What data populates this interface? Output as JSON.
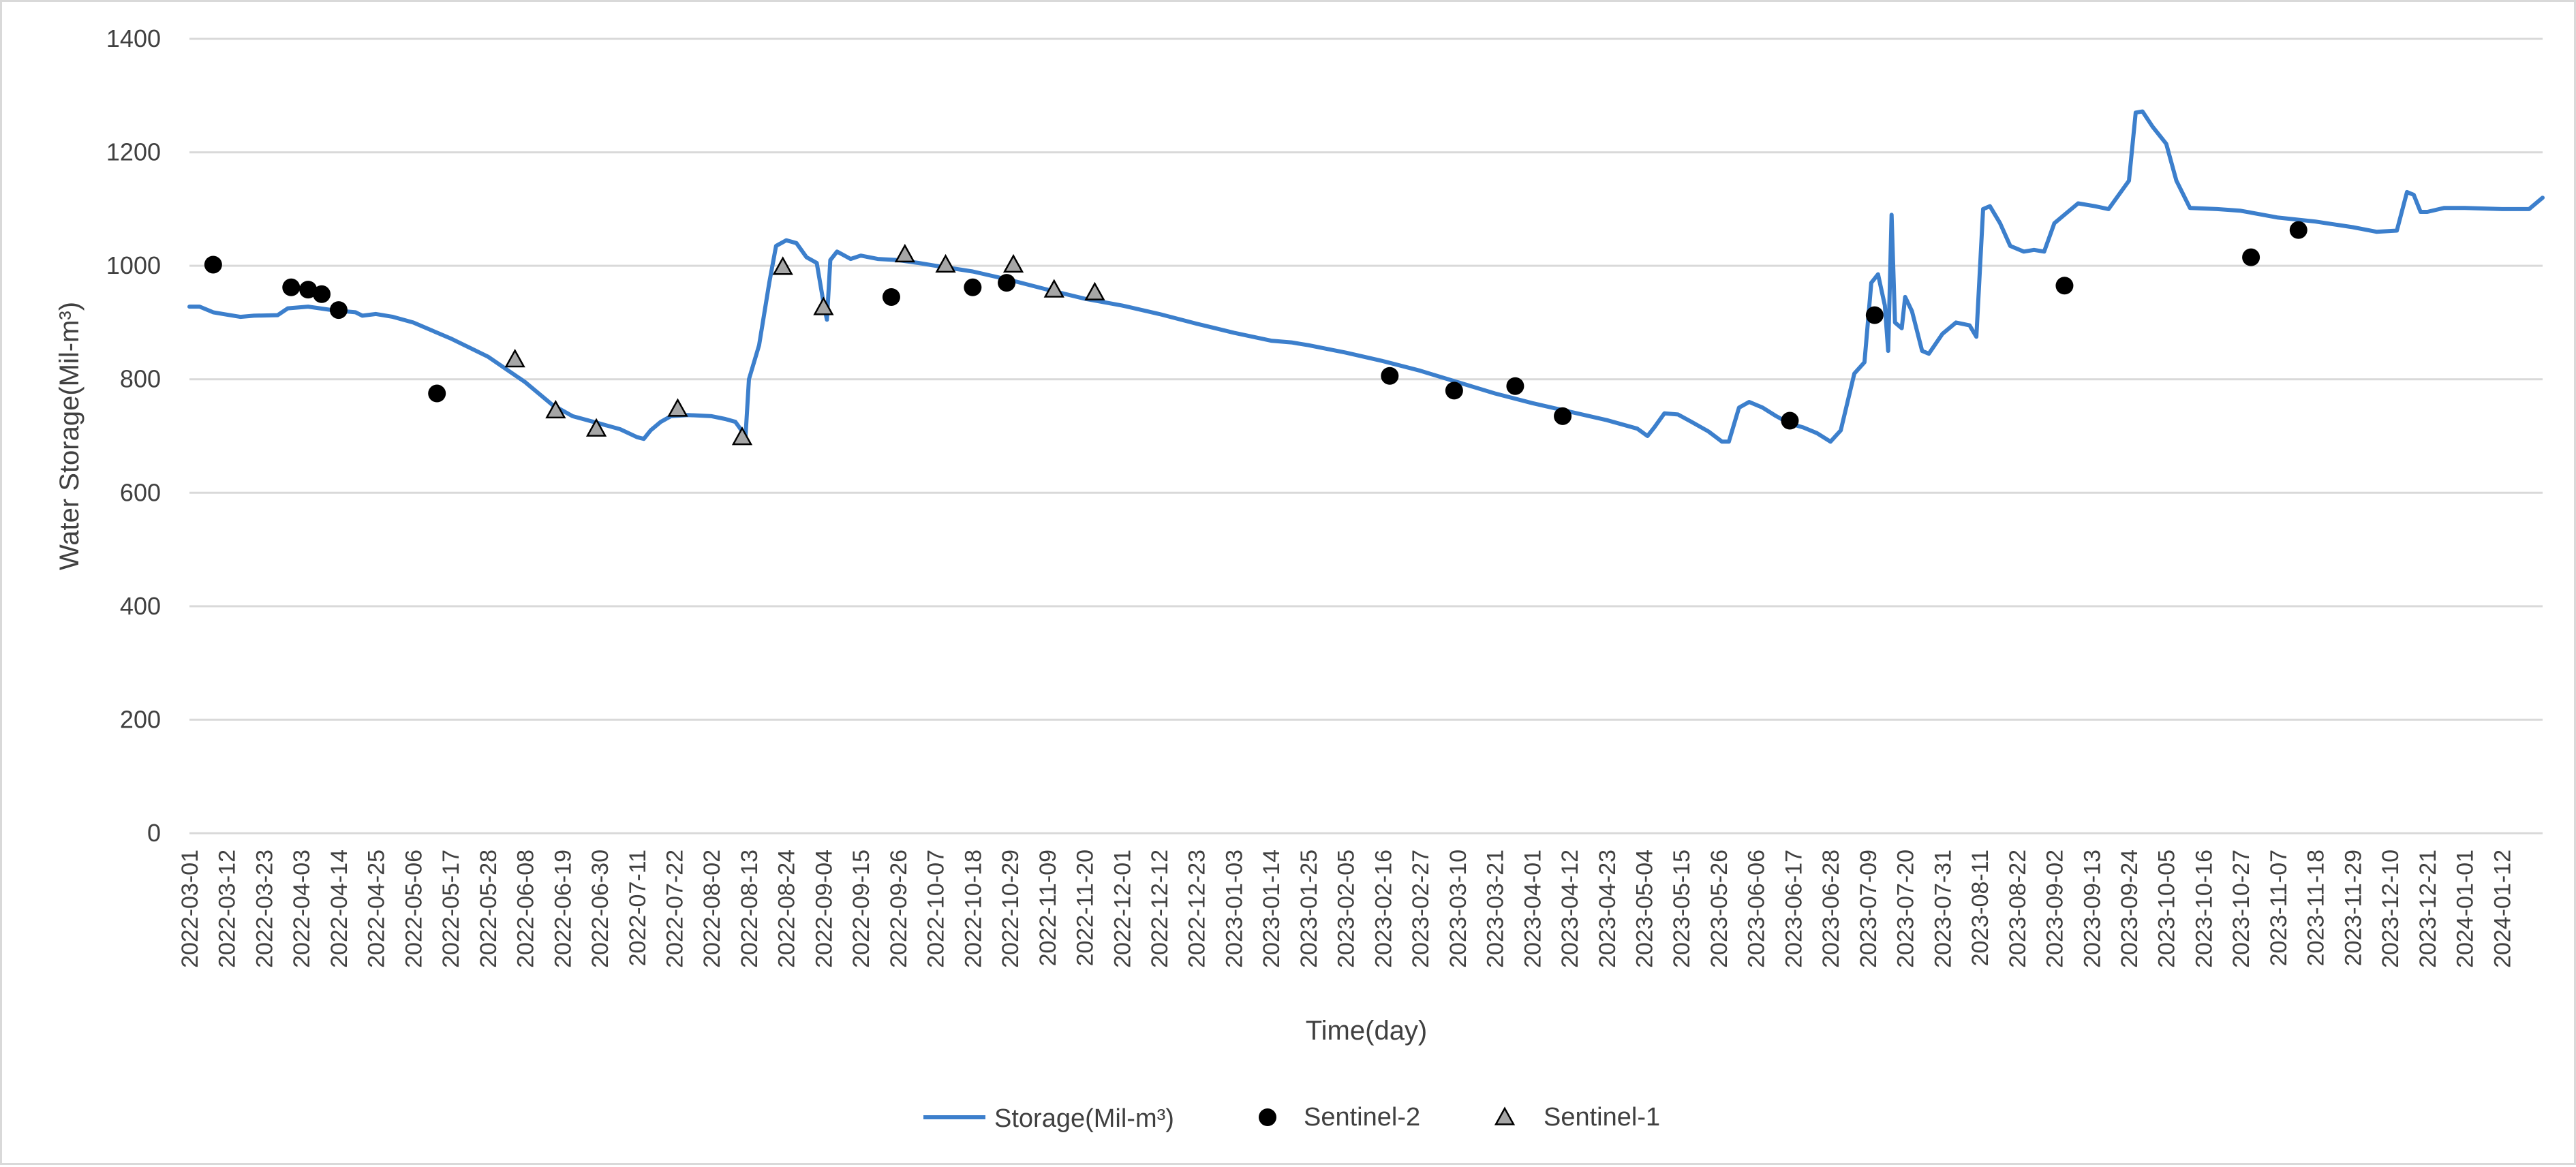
{
  "chart_data": {
    "type": "line",
    "title": "",
    "xlabel": "Time(day)",
    "ylabel": "Water Storage(Mil-m³)",
    "ylim": [
      0,
      1400
    ],
    "yticks": [
      0,
      200,
      400,
      600,
      800,
      1000,
      1200,
      1400
    ],
    "xlim": [
      "2022-03-01",
      "2024-01-24"
    ],
    "grid": "horizontal",
    "legend_position": "bottom",
    "x_tick_labels": [
      "2022-03-01",
      "2022-03-12",
      "2022-03-23",
      "2022-04-03",
      "2022-04-14",
      "2022-04-25",
      "2022-05-06",
      "2022-05-17",
      "2022-05-28",
      "2022-06-08",
      "2022-06-19",
      "2022-06-30",
      "2022-07-11",
      "2022-07-22",
      "2022-08-02",
      "2022-08-13",
      "2022-08-24",
      "2022-09-04",
      "2022-09-15",
      "2022-09-26",
      "2022-10-07",
      "2022-10-18",
      "2022-10-29",
      "2022-11-09",
      "2022-11-20",
      "2022-12-01",
      "2022-12-12",
      "2022-12-23",
      "2023-01-03",
      "2023-01-14",
      "2023-01-25",
      "2023-02-05",
      "2023-02-16",
      "2023-02-27",
      "2023-03-10",
      "2023-03-21",
      "2023-04-01",
      "2023-04-12",
      "2023-04-23",
      "2023-05-04",
      "2023-05-15",
      "2023-05-26",
      "2023-06-06",
      "2023-06-17",
      "2023-06-28",
      "2023-07-09",
      "2023-07-20",
      "2023-07-31",
      "2023-08-11",
      "2023-08-22",
      "2023-09-02",
      "2023-09-13",
      "2023-09-24",
      "2023-10-05",
      "2023-10-16",
      "2023-10-27",
      "2023-11-07",
      "2023-11-18",
      "2023-11-29",
      "2023-12-10",
      "2023-12-21",
      "2024-01-01",
      "2024-01-12"
    ],
    "series": [
      {
        "name": "Storage(Mil-m³)",
        "kind": "line",
        "color": "#3c7fcc",
        "points": [
          [
            "2022-03-01",
            928
          ],
          [
            "2022-03-04",
            928
          ],
          [
            "2022-03-08",
            918
          ],
          [
            "2022-03-12",
            914
          ],
          [
            "2022-03-16",
            910
          ],
          [
            "2022-03-20",
            912
          ],
          [
            "2022-03-27",
            913
          ],
          [
            "2022-03-30",
            925
          ],
          [
            "2022-04-05",
            928
          ],
          [
            "2022-04-12",
            922
          ],
          [
            "2022-04-19",
            918
          ],
          [
            "2022-04-21",
            912
          ],
          [
            "2022-04-25",
            915
          ],
          [
            "2022-04-30",
            910
          ],
          [
            "2022-05-06",
            900
          ],
          [
            "2022-05-17",
            872
          ],
          [
            "2022-05-28",
            840
          ],
          [
            "2022-06-08",
            795
          ],
          [
            "2022-06-16",
            755
          ],
          [
            "2022-06-22",
            735
          ],
          [
            "2022-06-30",
            722
          ],
          [
            "2022-07-06",
            712
          ],
          [
            "2022-07-11",
            698
          ],
          [
            "2022-07-13",
            695
          ],
          [
            "2022-07-15",
            710
          ],
          [
            "2022-07-18",
            725
          ],
          [
            "2022-07-21",
            735
          ],
          [
            "2022-07-26",
            737
          ],
          [
            "2022-08-02",
            735
          ],
          [
            "2022-08-06",
            730
          ],
          [
            "2022-08-09",
            725
          ],
          [
            "2022-08-12",
            700
          ],
          [
            "2022-08-13",
            800
          ],
          [
            "2022-08-16",
            860
          ],
          [
            "2022-08-19",
            970
          ],
          [
            "2022-08-21",
            1035
          ],
          [
            "2022-08-24",
            1045
          ],
          [
            "2022-08-27",
            1040
          ],
          [
            "2022-08-30",
            1015
          ],
          [
            "2022-09-02",
            1005
          ],
          [
            "2022-09-04",
            935
          ],
          [
            "2022-09-05",
            905
          ],
          [
            "2022-09-06",
            1010
          ],
          [
            "2022-09-08",
            1025
          ],
          [
            "2022-09-12",
            1012
          ],
          [
            "2022-09-15",
            1018
          ],
          [
            "2022-09-20",
            1012
          ],
          [
            "2022-09-26",
            1010
          ],
          [
            "2022-10-02",
            1005
          ],
          [
            "2022-10-07",
            1000
          ],
          [
            "2022-10-18",
            990
          ],
          [
            "2022-10-29",
            975
          ],
          [
            "2022-11-09",
            958
          ],
          [
            "2022-11-20",
            942
          ],
          [
            "2022-12-01",
            930
          ],
          [
            "2022-12-12",
            915
          ],
          [
            "2022-12-23",
            898
          ],
          [
            "2023-01-03",
            882
          ],
          [
            "2023-01-14",
            868
          ],
          [
            "2023-01-20",
            865
          ],
          [
            "2023-01-25",
            860
          ],
          [
            "2023-02-05",
            847
          ],
          [
            "2023-02-16",
            832
          ],
          [
            "2023-02-27",
            815
          ],
          [
            "2023-03-10",
            795
          ],
          [
            "2023-03-21",
            775
          ],
          [
            "2023-04-01",
            758
          ],
          [
            "2023-04-12",
            743
          ],
          [
            "2023-04-23",
            728
          ],
          [
            "2023-05-02",
            713
          ],
          [
            "2023-05-05",
            700
          ],
          [
            "2023-05-07",
            715
          ],
          [
            "2023-05-10",
            740
          ],
          [
            "2023-05-14",
            738
          ],
          [
            "2023-05-18",
            725
          ],
          [
            "2023-05-23",
            708
          ],
          [
            "2023-05-27",
            690
          ],
          [
            "2023-05-29",
            690
          ],
          [
            "2023-06-01",
            750
          ],
          [
            "2023-06-04",
            760
          ],
          [
            "2023-06-08",
            750
          ],
          [
            "2023-06-12",
            735
          ],
          [
            "2023-06-16",
            722
          ],
          [
            "2023-06-20",
            715
          ],
          [
            "2023-06-24",
            705
          ],
          [
            "2023-06-28",
            690
          ],
          [
            "2023-07-01",
            710
          ],
          [
            "2023-07-05",
            810
          ],
          [
            "2023-07-08",
            830
          ],
          [
            "2023-07-10",
            970
          ],
          [
            "2023-07-12",
            985
          ],
          [
            "2023-07-14",
            930
          ],
          [
            "2023-07-15",
            850
          ],
          [
            "2023-07-16",
            1090
          ],
          [
            "2023-07-17",
            900
          ],
          [
            "2023-07-19",
            890
          ],
          [
            "2023-07-20",
            945
          ],
          [
            "2023-07-22",
            920
          ],
          [
            "2023-07-25",
            850
          ],
          [
            "2023-07-27",
            845
          ],
          [
            "2023-07-31",
            880
          ],
          [
            "2023-08-04",
            900
          ],
          [
            "2023-08-08",
            895
          ],
          [
            "2023-08-10",
            875
          ],
          [
            "2023-08-12",
            1100
          ],
          [
            "2023-08-14",
            1105
          ],
          [
            "2023-08-17",
            1075
          ],
          [
            "2023-08-20",
            1035
          ],
          [
            "2023-08-24",
            1025
          ],
          [
            "2023-08-27",
            1028
          ],
          [
            "2023-08-30",
            1025
          ],
          [
            "2023-09-02",
            1075
          ],
          [
            "2023-09-06",
            1095
          ],
          [
            "2023-09-09",
            1110
          ],
          [
            "2023-09-14",
            1105
          ],
          [
            "2023-09-18",
            1100
          ],
          [
            "2023-09-21",
            1125
          ],
          [
            "2023-09-24",
            1150
          ],
          [
            "2023-09-26",
            1270
          ],
          [
            "2023-09-28",
            1272
          ],
          [
            "2023-10-01",
            1245
          ],
          [
            "2023-10-05",
            1215
          ],
          [
            "2023-10-08",
            1150
          ],
          [
            "2023-10-12",
            1102
          ],
          [
            "2023-10-20",
            1100
          ],
          [
            "2023-10-27",
            1097
          ],
          [
            "2023-11-07",
            1085
          ],
          [
            "2023-11-18",
            1078
          ],
          [
            "2023-11-29",
            1068
          ],
          [
            "2023-12-06",
            1060
          ],
          [
            "2023-12-12",
            1062
          ],
          [
            "2023-12-15",
            1130
          ],
          [
            "2023-12-17",
            1125
          ],
          [
            "2023-12-19",
            1095
          ],
          [
            "2023-12-21",
            1095
          ],
          [
            "2023-12-26",
            1102
          ],
          [
            "2024-01-01",
            1102
          ],
          [
            "2024-01-12",
            1100
          ],
          [
            "2024-01-20",
            1100
          ],
          [
            "2024-01-24",
            1120
          ]
        ]
      },
      {
        "name": "Sentinel-2",
        "kind": "scatter",
        "marker": "circle",
        "color": "#000000",
        "points": [
          [
            "2022-03-08",
            1002
          ],
          [
            "2022-03-31",
            962
          ],
          [
            "2022-04-05",
            958
          ],
          [
            "2022-04-09",
            950
          ],
          [
            "2022-04-14",
            922
          ],
          [
            "2022-05-13",
            775
          ],
          [
            "2022-09-24",
            945
          ],
          [
            "2022-10-18",
            962
          ],
          [
            "2022-10-28",
            970
          ],
          [
            "2023-02-18",
            806
          ],
          [
            "2023-03-09",
            780
          ],
          [
            "2023-03-27",
            788
          ],
          [
            "2023-04-10",
            735
          ],
          [
            "2023-06-16",
            727
          ],
          [
            "2023-07-11",
            913
          ],
          [
            "2023-09-05",
            965
          ],
          [
            "2023-10-30",
            1015
          ],
          [
            "2023-11-13",
            1063
          ]
        ]
      },
      {
        "name": "Sentinel-1",
        "kind": "scatter",
        "marker": "triangle",
        "color": "#a6a6a6",
        "points": [
          [
            "2022-06-05",
            835
          ],
          [
            "2022-06-17",
            745
          ],
          [
            "2022-06-29",
            713
          ],
          [
            "2022-07-23",
            748
          ],
          [
            "2022-08-11",
            698
          ],
          [
            "2022-08-23",
            998
          ],
          [
            "2022-09-04",
            927
          ],
          [
            "2022-09-28",
            1020
          ],
          [
            "2022-10-10",
            1002
          ],
          [
            "2022-10-30",
            1002
          ],
          [
            "2022-11-11",
            958
          ],
          [
            "2022-11-23",
            953
          ]
        ]
      }
    ]
  }
}
